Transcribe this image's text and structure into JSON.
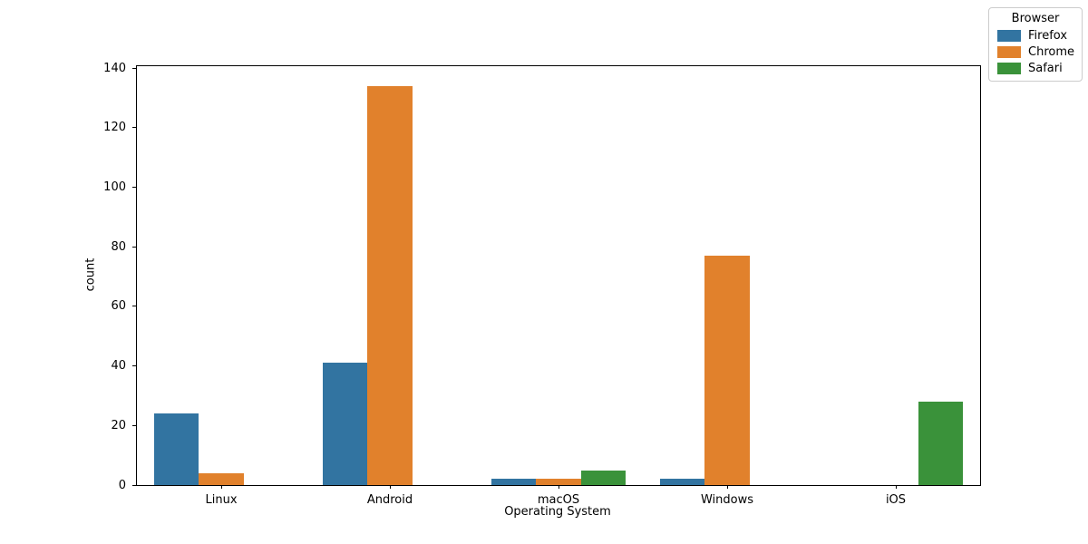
{
  "chart_data": {
    "type": "bar",
    "title": "",
    "xlabel": "Operating System",
    "ylabel": "count",
    "categories": [
      "Linux",
      "Android",
      "macOS",
      "Windows",
      "iOS"
    ],
    "series": [
      {
        "name": "Firefox",
        "color": "#3274a1",
        "values": [
          24,
          41,
          2,
          2,
          0
        ]
      },
      {
        "name": "Chrome",
        "color": "#e1812c",
        "values": [
          4,
          134,
          2,
          77,
          0
        ]
      },
      {
        "name": "Safari",
        "color": "#3a923a",
        "values": [
          0,
          0,
          5,
          0,
          28
        ]
      }
    ],
    "ylim": [
      0,
      140.7
    ],
    "yticks": [
      0,
      20,
      40,
      60,
      80,
      100,
      120,
      140
    ],
    "grid": false,
    "legend": {
      "title": "Browser",
      "position": "upper right",
      "entries": [
        "Firefox",
        "Chrome",
        "Safari"
      ]
    },
    "group_width_fraction": 0.8
  }
}
